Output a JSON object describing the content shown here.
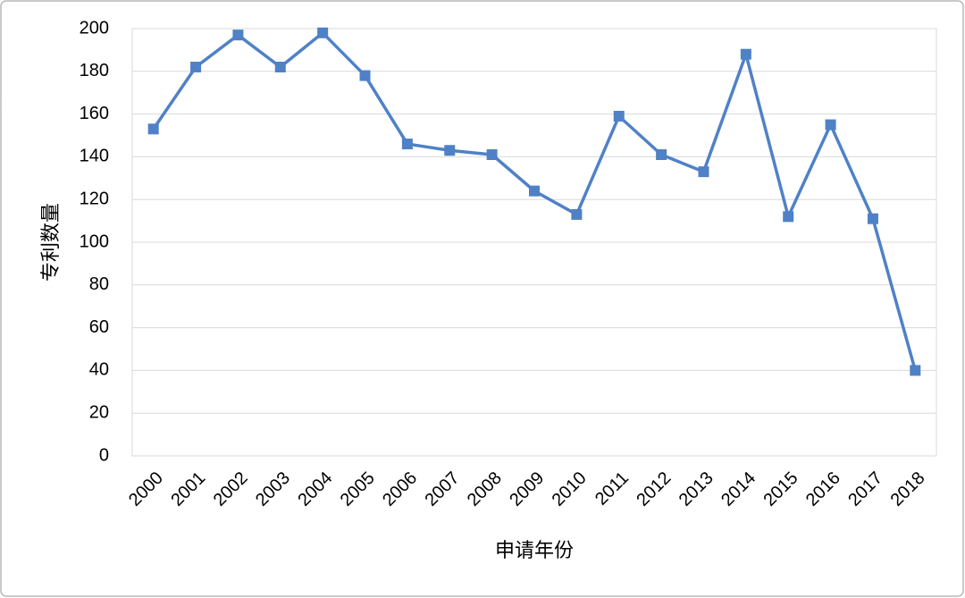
{
  "chart_data": {
    "type": "line",
    "x_label": "申请年份",
    "y_label": "专利数量",
    "categories": [
      "2000",
      "2001",
      "2002",
      "2003",
      "2004",
      "2005",
      "2006",
      "2007",
      "2008",
      "2009",
      "2010",
      "2011",
      "2012",
      "2013",
      "2014",
      "2015",
      "2016",
      "2017",
      "2018"
    ],
    "values": [
      153,
      182,
      197,
      182,
      198,
      178,
      146,
      143,
      141,
      124,
      113,
      159,
      141,
      133,
      188,
      112,
      155,
      111,
      40
    ],
    "color": "#4f81c7",
    "ylim": [
      0,
      200
    ],
    "yticks": [
      0,
      20,
      40,
      60,
      80,
      100,
      120,
      140,
      160,
      180,
      200
    ],
    "grid": true
  }
}
